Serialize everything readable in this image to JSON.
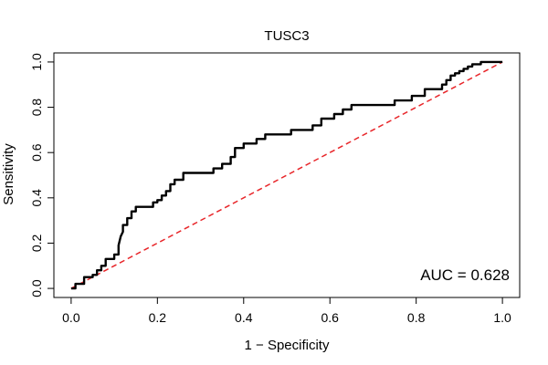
{
  "chart_data": {
    "type": "line",
    "title": "TUSC3",
    "xlabel": "1 − Specificity",
    "ylabel": "Sensitivity",
    "xlim": [
      -0.04,
      1.04
    ],
    "ylim": [
      -0.04,
      1.04
    ],
    "xticks": [
      0.0,
      0.2,
      0.4,
      0.6,
      0.8,
      1.0
    ],
    "xtick_labels": [
      "0.0",
      "0.2",
      "0.4",
      "0.6",
      "0.8",
      "1.0"
    ],
    "yticks": [
      0.0,
      0.2,
      0.4,
      0.6,
      0.8,
      1.0
    ],
    "ytick_labels": [
      "0.0",
      "0.2",
      "0.4",
      "0.6",
      "0.8",
      "1.0"
    ],
    "annotation": "AUC = 0.628",
    "grid": false,
    "diagonal": {
      "x": [
        0,
        1
      ],
      "y": [
        0,
        1
      ],
      "color": "#e8262a",
      "style": "dashed"
    },
    "series": [
      {
        "color": "#000000",
        "x": [
          0.0,
          0.01,
          0.01,
          0.03,
          0.03,
          0.05,
          0.05,
          0.06,
          0.06,
          0.07,
          0.07,
          0.08,
          0.08,
          0.1,
          0.1,
          0.11,
          0.11,
          0.115,
          0.12,
          0.12,
          0.13,
          0.13,
          0.14,
          0.14,
          0.15,
          0.15,
          0.19,
          0.19,
          0.2,
          0.2,
          0.21,
          0.21,
          0.22,
          0.22,
          0.23,
          0.23,
          0.24,
          0.24,
          0.26,
          0.26,
          0.33,
          0.33,
          0.35,
          0.35,
          0.37,
          0.37,
          0.38,
          0.38,
          0.4,
          0.4,
          0.43,
          0.43,
          0.45,
          0.45,
          0.51,
          0.51,
          0.56,
          0.56,
          0.58,
          0.58,
          0.61,
          0.61,
          0.63,
          0.63,
          0.65,
          0.65,
          0.75,
          0.75,
          0.79,
          0.79,
          0.82,
          0.82,
          0.86,
          0.86,
          0.87,
          0.87,
          0.88,
          0.88,
          0.89,
          0.89,
          0.9,
          0.9,
          0.91,
          0.91,
          0.92,
          0.92,
          0.93,
          0.93,
          0.95,
          0.95,
          0.97,
          1.0
        ],
        "y": [
          0.0,
          0.0,
          0.02,
          0.02,
          0.05,
          0.05,
          0.06,
          0.06,
          0.08,
          0.08,
          0.1,
          0.1,
          0.13,
          0.13,
          0.15,
          0.15,
          0.19,
          0.23,
          0.25,
          0.28,
          0.28,
          0.31,
          0.31,
          0.34,
          0.34,
          0.36,
          0.36,
          0.38,
          0.38,
          0.39,
          0.39,
          0.41,
          0.41,
          0.43,
          0.43,
          0.46,
          0.46,
          0.48,
          0.48,
          0.51,
          0.51,
          0.53,
          0.53,
          0.55,
          0.55,
          0.58,
          0.58,
          0.62,
          0.62,
          0.64,
          0.64,
          0.66,
          0.66,
          0.68,
          0.68,
          0.7,
          0.7,
          0.72,
          0.72,
          0.75,
          0.75,
          0.77,
          0.77,
          0.79,
          0.79,
          0.81,
          0.81,
          0.83,
          0.83,
          0.85,
          0.85,
          0.88,
          0.88,
          0.9,
          0.9,
          0.92,
          0.92,
          0.94,
          0.94,
          0.95,
          0.95,
          0.96,
          0.96,
          0.97,
          0.97,
          0.98,
          0.98,
          0.99,
          0.99,
          1.0,
          1.0,
          1.0
        ]
      }
    ]
  }
}
